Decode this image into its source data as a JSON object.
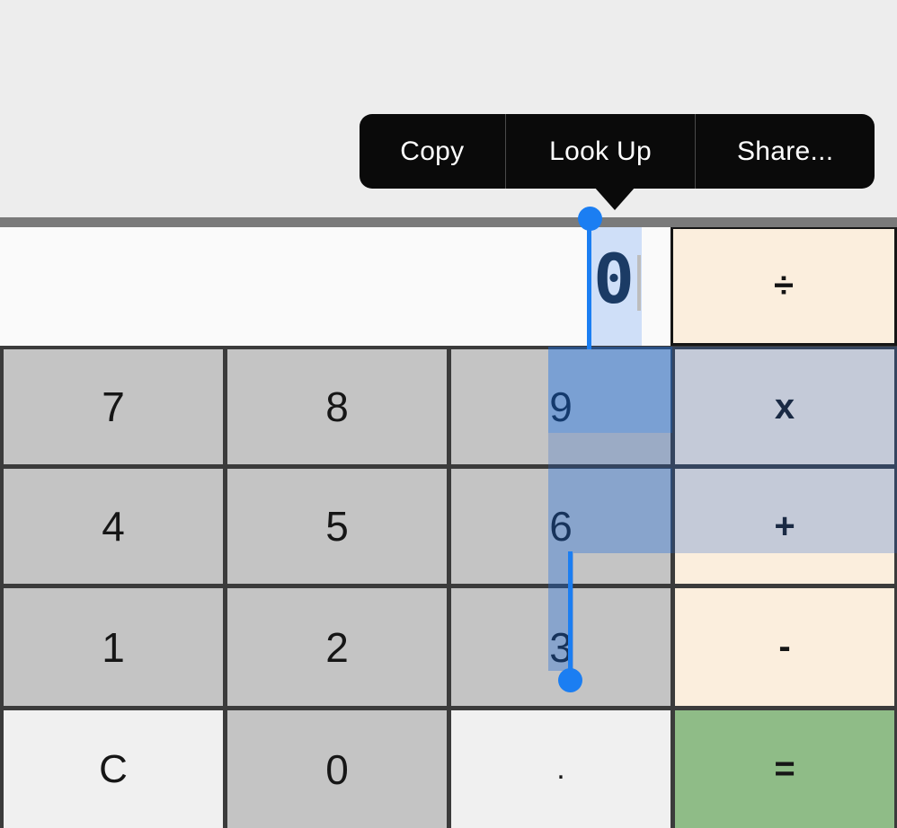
{
  "context_menu": {
    "items": [
      {
        "label": "Copy"
      },
      {
        "label": "Look Up"
      },
      {
        "label": "Share..."
      }
    ]
  },
  "calculator": {
    "display": {
      "value": "0"
    },
    "divide_button": {
      "label": "÷"
    },
    "buttons": [
      {
        "label": "7"
      },
      {
        "label": "8"
      },
      {
        "label": "9"
      },
      {
        "label": "x"
      },
      {
        "label": "4"
      },
      {
        "label": "5"
      },
      {
        "label": "6"
      },
      {
        "label": "+"
      },
      {
        "label": "1"
      },
      {
        "label": "2"
      },
      {
        "label": "3"
      },
      {
        "label": "-"
      },
      {
        "label": "C"
      },
      {
        "label": "0"
      },
      {
        "label": "."
      },
      {
        "label": "="
      }
    ]
  },
  "colors": {
    "page_bg": "#ededed",
    "menu_bg": "#0a0a0a",
    "menu_text": "#ffffff",
    "display_bg": "#fafafa",
    "display_text": "#1f3347",
    "number_button": "#c4c4c4",
    "operator_button": "#fbeedd",
    "equals_button": "#8fbc87",
    "utility_button": "#f0f0f0",
    "grid_border": "#3b3b3b",
    "selection_handle": "#1b7ef2"
  }
}
